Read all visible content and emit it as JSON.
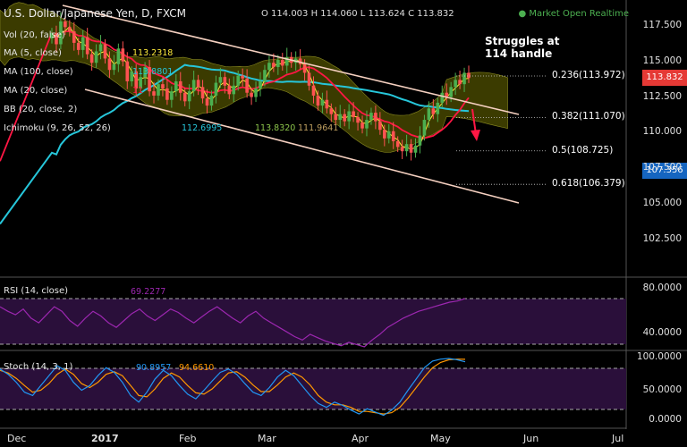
{
  "header": {
    "title": "U.S. Dollar/Japanese Yen, D, FXCM",
    "ohlc": "O 114.003  H 114.060  L 113.624  C 113.832",
    "status": "Market Open  Realtime"
  },
  "indicators": {
    "vol": "Vol (20, false)",
    "ma5": "MA (5, close)",
    "ma5_val": "113.2318",
    "ma100": "MA (100, close)",
    "ma100_val": "113.8801",
    "ma20": "MA (20, close)",
    "ma20_val": "11",
    "bb": "BB (20, close, 2)",
    "ichimoku": "Ichimoku (9, 26, 52, 26)",
    "ichi_vals": [
      "112.6995",
      "113.8320",
      "111.9641"
    ]
  },
  "annotation": {
    "line1": "Struggles at",
    "line2": "114 handle"
  },
  "fib_levels": [
    {
      "label": "0.236(113.972)",
      "price": 113.972
    },
    {
      "label": "0.382(111.070)",
      "price": 111.07
    },
    {
      "label": "0.5(108.725)",
      "price": 108.725
    },
    {
      "label": "0.618(106.379)",
      "price": 106.379
    }
  ],
  "price_tags": [
    {
      "label": "113.832",
      "price": 113.832,
      "color": "#e53935"
    },
    {
      "label": "107.356",
      "price": 107.356,
      "color": "#1565c0"
    }
  ],
  "rsi": {
    "label": "RSI (14, close)",
    "value": "69.2277",
    "color": "#9c27b0"
  },
  "stoch": {
    "label": "Stoch (14, 3, 1)",
    "k": "90.8957",
    "d": "94.6610",
    "k_color": "#2196f3",
    "d_color": "#ff9800"
  },
  "colors": {
    "bull": "#4caf50",
    "bear": "#ff5252",
    "ma5": "#ffeb3b",
    "ma100": "#26c6da",
    "ma20": "#ff1744",
    "cloud_bull": "#6b6b00",
    "cloud_bear": "#5a2a1a",
    "channel": "#f5d0c0"
  },
  "chart_data": {
    "type": "candlestick",
    "y_range": [
      100.5,
      118.8
    ],
    "y_ticks": [
      "117.500",
      "115.000",
      "112.500",
      "110.000",
      "107.500",
      "105.000",
      "102.500"
    ],
    "x_ticks": [
      "Dec",
      "2017",
      "Feb",
      "Mar",
      "Apr",
      "May",
      "Jun",
      "Jul"
    ],
    "closes": [
      117.0,
      116.2,
      117.8,
      117.4,
      117.1,
      116.3,
      115.8,
      116.7,
      115.5,
      114.9,
      115.7,
      116.2,
      115.2,
      114.4,
      114.8,
      115.9,
      115.0,
      113.6,
      114.3,
      113.1,
      113.9,
      114.6,
      112.9,
      112.6,
      113.4,
      113.1,
      112.3,
      112.9,
      113.6,
      112.8,
      112.2,
      112.9,
      113.7,
      113.2,
      112.4,
      111.9,
      112.6,
      113.5,
      113.9,
      113.3,
      112.7,
      113.3,
      114.0,
      113.8,
      112.8,
      112.5,
      113.1,
      113.6,
      114.4,
      114.9,
      114.6,
      115.1,
      114.7,
      115.3,
      114.9,
      115.2,
      114.8,
      114.2,
      113.3,
      112.6,
      111.9,
      112.3,
      111.7,
      111.3,
      110.9,
      111.3,
      110.8,
      111.5,
      111.1,
      110.7,
      110.3,
      110.9,
      111.4,
      110.8,
      110.2,
      109.6,
      110.1,
      109.4,
      109.0,
      108.7,
      109.2,
      108.6,
      109.1,
      109.8,
      110.9,
      111.7,
      111.3,
      112.1,
      112.8,
      112.5,
      113.2,
      113.7,
      113.4,
      114.2,
      113.832
    ],
    "rsi": [
      62,
      58,
      55,
      60,
      52,
      48,
      55,
      62,
      58,
      50,
      45,
      52,
      58,
      54,
      48,
      44,
      50,
      56,
      60,
      54,
      50,
      55,
      60,
      57,
      52,
      48,
      53,
      58,
      62,
      57,
      52,
      48,
      54,
      58,
      52,
      48,
      44,
      40,
      36,
      33,
      38,
      35,
      32,
      30,
      28,
      31,
      29,
      27,
      33,
      38,
      44,
      48,
      52,
      55,
      58,
      60,
      62,
      64,
      66,
      67,
      69.2
    ],
    "rsi_range": [
      20,
      80
    ],
    "rsi_ticks": [
      "80.0000",
      "40.0000"
    ],
    "stoch_k": [
      80,
      72,
      60,
      45,
      40,
      55,
      70,
      85,
      78,
      60,
      48,
      55,
      70,
      82,
      75,
      60,
      40,
      30,
      45,
      65,
      78,
      70,
      55,
      42,
      35,
      48,
      62,
      75,
      80,
      72,
      58,
      45,
      40,
      52,
      68,
      78,
      70,
      55,
      40,
      28,
      22,
      30,
      25,
      18,
      12,
      20,
      15,
      10,
      18,
      30,
      48,
      65,
      82,
      92,
      95,
      96,
      94,
      90.9
    ],
    "stoch_d": [
      78,
      74,
      66,
      55,
      45,
      48,
      58,
      72,
      80,
      72,
      58,
      52,
      60,
      72,
      76,
      70,
      55,
      40,
      38,
      50,
      66,
      74,
      68,
      55,
      44,
      42,
      50,
      62,
      74,
      76,
      68,
      56,
      46,
      46,
      56,
      68,
      74,
      68,
      56,
      40,
      30,
      26,
      26,
      22,
      16,
      16,
      14,
      12,
      14,
      22,
      36,
      52,
      68,
      82,
      90,
      94,
      95,
      94.7
    ],
    "stoch_range": [
      0,
      100
    ],
    "stoch_ticks": [
      "100.0000",
      "50.0000",
      "0.0000"
    ]
  }
}
